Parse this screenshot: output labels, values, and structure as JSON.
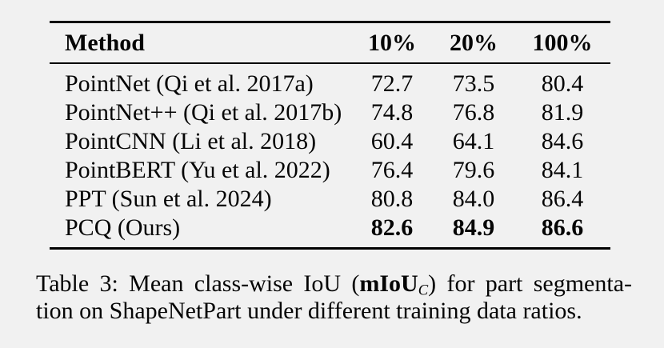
{
  "table": {
    "headers": [
      "Method",
      "10%",
      "20%",
      "100%"
    ],
    "rows": [
      {
        "method": "PointNet (Qi et al. 2017a)",
        "p10": "72.7",
        "p20": "73.5",
        "p100": "80.4"
      },
      {
        "method": "PointNet++ (Qi et al. 2017b)",
        "p10": "74.8",
        "p20": "76.8",
        "p100": "81.9"
      },
      {
        "method": "PointCNN (Li et al. 2018)",
        "p10": "60.4",
        "p20": "64.1",
        "p100": "84.6"
      },
      {
        "method": "PointBERT (Yu et al. 2022)",
        "p10": "76.4",
        "p20": "79.6",
        "p100": "84.1"
      },
      {
        "method": "PPT (Sun et al. 2024)",
        "p10": "80.8",
        "p20": "84.0",
        "p100": "86.4"
      },
      {
        "method": "PCQ (Ours)",
        "p10": "82.6",
        "p20": "84.9",
        "p100": "86.6"
      }
    ]
  },
  "caption": {
    "line1_pre": "Table 3: Mean class-wise IoU (",
    "miou_bold": "mIoU",
    "miou_sub": "C",
    "line1_post": ") for part segmenta-",
    "line2": "tion on ShapeNetPart under different training data ratios."
  },
  "colors": {
    "background": "#f1f1f1",
    "text": "#050505",
    "rule": "#000000"
  }
}
